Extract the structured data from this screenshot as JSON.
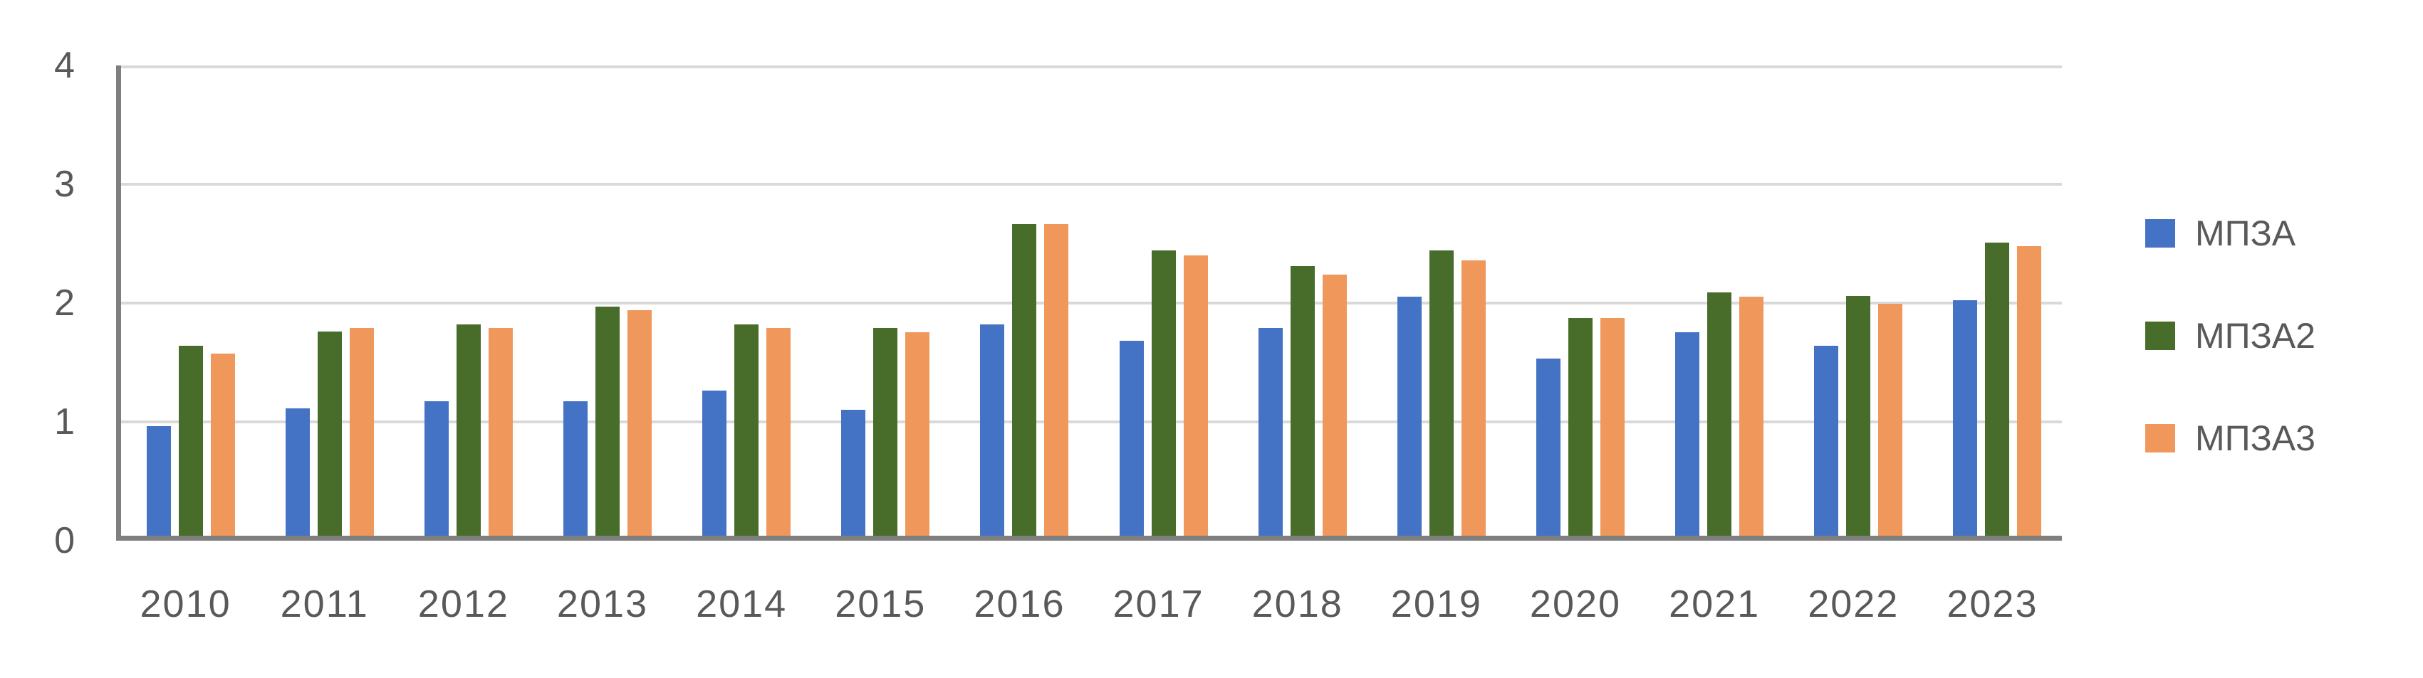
{
  "chart_data": {
    "type": "bar",
    "title": "",
    "xlabel": "",
    "ylabel": "",
    "categories": [
      "2010",
      "2011",
      "2012",
      "2013",
      "2014",
      "2015",
      "2016",
      "2017",
      "2018",
      "2019",
      "2020",
      "2021",
      "2022",
      "2023"
    ],
    "series": [
      {
        "name": "МПЗА",
        "color": "#4472C4",
        "values": [
          0.92,
          1.07,
          1.13,
          1.13,
          1.22,
          1.06,
          1.78,
          1.64,
          1.75,
          2.01,
          1.49,
          1.71,
          1.6,
          1.98
        ]
      },
      {
        "name": "МПЗА2",
        "color": "#486C2A",
        "values": [
          1.6,
          1.72,
          1.78,
          1.93,
          1.78,
          1.75,
          2.62,
          2.4,
          2.27,
          2.4,
          1.83,
          2.05,
          2.02,
          2.47
        ]
      },
      {
        "name": "МПЗА3",
        "color": "#F0985C",
        "values": [
          1.53,
          1.75,
          1.75,
          1.9,
          1.75,
          1.71,
          2.62,
          2.36,
          2.2,
          2.32,
          1.83,
          2.01,
          1.95,
          2.44
        ]
      }
    ],
    "ylim": [
      0,
      4
    ],
    "yticks": [
      0,
      1,
      2,
      3,
      4
    ],
    "grid": true,
    "legend_position": "right",
    "style": {
      "gridline_color": "#D9D9D9",
      "axis_line_color": "#7F7F7F",
      "tick_label_color": "#595959",
      "background": "#FFFFFF"
    }
  }
}
